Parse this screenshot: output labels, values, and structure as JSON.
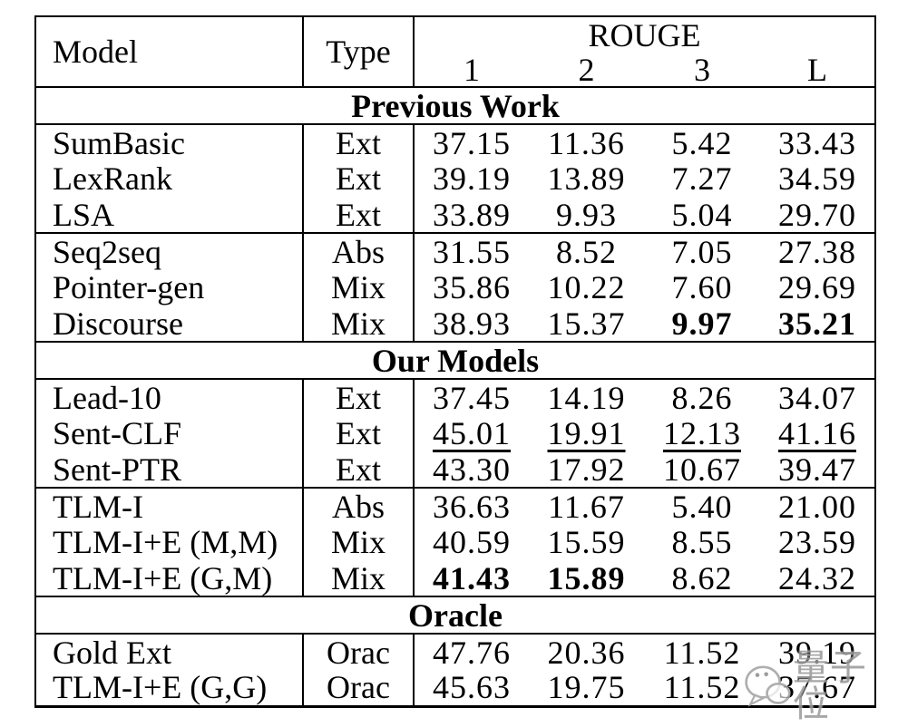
{
  "page": {
    "background": "#ffffff",
    "text_color": "#000000",
    "border_color": "#000000"
  },
  "watermark": {
    "text": "量子位",
    "color": "#9b9b9b",
    "logo": "qbitai-speech-bubbles"
  },
  "table": {
    "header": {
      "model": "Model",
      "type": "Type",
      "rouge": "ROUGE",
      "rouge_cols": [
        "1",
        "2",
        "3",
        "L"
      ]
    },
    "sections": [
      {
        "title": "Previous Work",
        "groups": [
          [
            {
              "model": "SumBasic",
              "type": "Ext",
              "scores": [
                {
                  "v": "37.15"
                },
                {
                  "v": "11.36"
                },
                {
                  "v": "5.42"
                },
                {
                  "v": "33.43"
                }
              ]
            },
            {
              "model": "LexRank",
              "type": "Ext",
              "scores": [
                {
                  "v": "39.19"
                },
                {
                  "v": "13.89"
                },
                {
                  "v": "7.27"
                },
                {
                  "v": "34.59"
                }
              ]
            },
            {
              "model": "LSA",
              "type": "Ext",
              "scores": [
                {
                  "v": "33.89"
                },
                {
                  "v": "9.93"
                },
                {
                  "v": "5.04"
                },
                {
                  "v": "29.70"
                }
              ]
            }
          ],
          [
            {
              "model": "Seq2seq",
              "type": "Abs",
              "scores": [
                {
                  "v": "31.55"
                },
                {
                  "v": "8.52"
                },
                {
                  "v": "7.05"
                },
                {
                  "v": "27.38"
                }
              ]
            },
            {
              "model": "Pointer-gen",
              "type": "Mix",
              "scores": [
                {
                  "v": "35.86"
                },
                {
                  "v": "10.22"
                },
                {
                  "v": "7.60"
                },
                {
                  "v": "29.69"
                }
              ]
            },
            {
              "model": "Discourse",
              "type": "Mix",
              "scores": [
                {
                  "v": "38.93"
                },
                {
                  "v": "15.37"
                },
                {
                  "v": "9.97",
                  "b": true
                },
                {
                  "v": "35.21",
                  "b": true
                }
              ]
            }
          ]
        ]
      },
      {
        "title": "Our Models",
        "groups": [
          [
            {
              "model": "Lead-10",
              "type": "Ext",
              "scores": [
                {
                  "v": "37.45"
                },
                {
                  "v": "14.19"
                },
                {
                  "v": "8.26"
                },
                {
                  "v": "34.07"
                }
              ]
            },
            {
              "model": "Sent-CLF",
              "type": "Ext",
              "scores": [
                {
                  "v": "45.01",
                  "u": true
                },
                {
                  "v": "19.91",
                  "u": true
                },
                {
                  "v": "12.13",
                  "u": true
                },
                {
                  "v": "41.16",
                  "u": true
                }
              ]
            },
            {
              "model": "Sent-PTR",
              "type": "Ext",
              "scores": [
                {
                  "v": "43.30"
                },
                {
                  "v": "17.92"
                },
                {
                  "v": "10.67"
                },
                {
                  "v": "39.47"
                }
              ]
            }
          ],
          [
            {
              "model": "TLM-I",
              "type": "Abs",
              "scores": [
                {
                  "v": "36.63"
                },
                {
                  "v": "11.67"
                },
                {
                  "v": "5.40"
                },
                {
                  "v": "21.00"
                }
              ]
            },
            {
              "model": "TLM-I+E (M,M)",
              "type": "Mix",
              "scores": [
                {
                  "v": "40.59"
                },
                {
                  "v": "15.59"
                },
                {
                  "v": "8.55"
                },
                {
                  "v": "23.59"
                }
              ]
            },
            {
              "model": "TLM-I+E (G,M)",
              "type": "Mix",
              "scores": [
                {
                  "v": "41.43",
                  "b": true
                },
                {
                  "v": "15.89",
                  "b": true
                },
                {
                  "v": "8.62"
                },
                {
                  "v": "24.32"
                }
              ]
            }
          ]
        ]
      },
      {
        "title": "Oracle",
        "groups": [
          [
            {
              "model": "Gold Ext",
              "type": "Orac",
              "scores": [
                {
                  "v": "47.76"
                },
                {
                  "v": "20.36"
                },
                {
                  "v": "11.52"
                },
                {
                  "v": "39.19"
                }
              ]
            },
            {
              "model": "TLM-I+E (G,G)",
              "type": "Orac",
              "scores": [
                {
                  "v": "45.63"
                },
                {
                  "v": "19.75"
                },
                {
                  "v": "11.52"
                },
                {
                  "v": "37.67"
                }
              ]
            }
          ]
        ]
      }
    ]
  }
}
